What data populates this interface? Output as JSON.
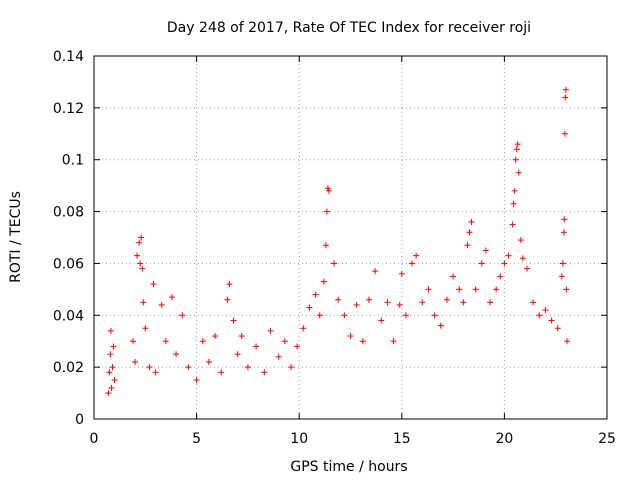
{
  "chart_data": {
    "type": "scatter",
    "title": "Day 248 of 2017, Rate Of TEC Index for receiver roji",
    "xlabel": "GPS time / hours",
    "ylabel": "ROTI / TECUs",
    "xlim": [
      0,
      25
    ],
    "ylim": [
      0,
      0.14
    ],
    "x_ticks": [
      0,
      5,
      10,
      15,
      20,
      25
    ],
    "x_tick_labels": [
      "0",
      "5",
      "10",
      "15",
      "20",
      "25"
    ],
    "y_ticks": [
      0,
      0.02,
      0.04,
      0.06,
      0.08,
      0.1,
      0.12,
      0.14
    ],
    "y_tick_labels": [
      "0",
      "0.02",
      "0.04",
      "0.06",
      "0.08",
      "0.1",
      "0.12",
      "0.14"
    ],
    "grid": true,
    "marker": "+",
    "color": "#ff0000",
    "series": [
      {
        "name": "ROTI",
        "points": [
          [
            0.7,
            0.01
          ],
          [
            0.75,
            0.018
          ],
          [
            0.8,
            0.025
          ],
          [
            0.82,
            0.034
          ],
          [
            0.85,
            0.012
          ],
          [
            0.9,
            0.02
          ],
          [
            0.95,
            0.028
          ],
          [
            1.0,
            0.015
          ],
          [
            1.9,
            0.03
          ],
          [
            2.0,
            0.022
          ],
          [
            2.1,
            0.063
          ],
          [
            2.2,
            0.068
          ],
          [
            2.25,
            0.06
          ],
          [
            2.3,
            0.07
          ],
          [
            2.35,
            0.058
          ],
          [
            2.4,
            0.045
          ],
          [
            2.5,
            0.035
          ],
          [
            2.7,
            0.02
          ],
          [
            2.9,
            0.052
          ],
          [
            3.0,
            0.018
          ],
          [
            3.3,
            0.044
          ],
          [
            3.5,
            0.03
          ],
          [
            3.8,
            0.047
          ],
          [
            4.0,
            0.025
          ],
          [
            4.3,
            0.04
          ],
          [
            4.6,
            0.02
          ],
          [
            5.0,
            0.015
          ],
          [
            5.3,
            0.03
          ],
          [
            5.6,
            0.022
          ],
          [
            5.9,
            0.032
          ],
          [
            6.2,
            0.018
          ],
          [
            6.5,
            0.046
          ],
          [
            6.6,
            0.052
          ],
          [
            6.8,
            0.038
          ],
          [
            7.0,
            0.025
          ],
          [
            7.2,
            0.032
          ],
          [
            7.5,
            0.02
          ],
          [
            7.9,
            0.028
          ],
          [
            8.3,
            0.018
          ],
          [
            8.6,
            0.034
          ],
          [
            9.0,
            0.024
          ],
          [
            9.3,
            0.03
          ],
          [
            9.6,
            0.02
          ],
          [
            9.9,
            0.028
          ],
          [
            10.2,
            0.035
          ],
          [
            10.5,
            0.043
          ],
          [
            10.8,
            0.048
          ],
          [
            11.0,
            0.04
          ],
          [
            11.2,
            0.053
          ],
          [
            11.3,
            0.067
          ],
          [
            11.35,
            0.08
          ],
          [
            11.4,
            0.089
          ],
          [
            11.45,
            0.088
          ],
          [
            11.7,
            0.06
          ],
          [
            11.9,
            0.046
          ],
          [
            12.2,
            0.04
          ],
          [
            12.5,
            0.032
          ],
          [
            12.8,
            0.044
          ],
          [
            13.1,
            0.03
          ],
          [
            13.4,
            0.046
          ],
          [
            13.7,
            0.057
          ],
          [
            14.0,
            0.038
          ],
          [
            14.3,
            0.045
          ],
          [
            14.6,
            0.03
          ],
          [
            14.9,
            0.044
          ],
          [
            15.0,
            0.056
          ],
          [
            15.2,
            0.04
          ],
          [
            15.5,
            0.06
          ],
          [
            15.7,
            0.063
          ],
          [
            16.0,
            0.045
          ],
          [
            16.3,
            0.05
          ],
          [
            16.6,
            0.04
          ],
          [
            16.9,
            0.036
          ],
          [
            17.2,
            0.046
          ],
          [
            17.5,
            0.055
          ],
          [
            17.8,
            0.05
          ],
          [
            18.0,
            0.045
          ],
          [
            18.2,
            0.067
          ],
          [
            18.3,
            0.072
          ],
          [
            18.4,
            0.076
          ],
          [
            18.6,
            0.05
          ],
          [
            18.9,
            0.06
          ],
          [
            19.1,
            0.065
          ],
          [
            19.3,
            0.045
          ],
          [
            19.6,
            0.05
          ],
          [
            19.8,
            0.055
          ],
          [
            20.0,
            0.06
          ],
          [
            20.2,
            0.063
          ],
          [
            20.4,
            0.075
          ],
          [
            20.45,
            0.083
          ],
          [
            20.5,
            0.088
          ],
          [
            20.55,
            0.1
          ],
          [
            20.6,
            0.104
          ],
          [
            20.65,
            0.106
          ],
          [
            20.7,
            0.095
          ],
          [
            20.8,
            0.069
          ],
          [
            20.9,
            0.062
          ],
          [
            21.1,
            0.058
          ],
          [
            21.4,
            0.045
          ],
          [
            21.7,
            0.04
          ],
          [
            22.0,
            0.042
          ],
          [
            22.3,
            0.038
          ],
          [
            22.6,
            0.035
          ],
          [
            22.8,
            0.055
          ],
          [
            22.85,
            0.06
          ],
          [
            22.9,
            0.072
          ],
          [
            22.92,
            0.077
          ],
          [
            22.95,
            0.11
          ],
          [
            22.97,
            0.124
          ],
          [
            23.0,
            0.127
          ],
          [
            23.02,
            0.05
          ],
          [
            23.05,
            0.03
          ]
        ]
      }
    ]
  }
}
